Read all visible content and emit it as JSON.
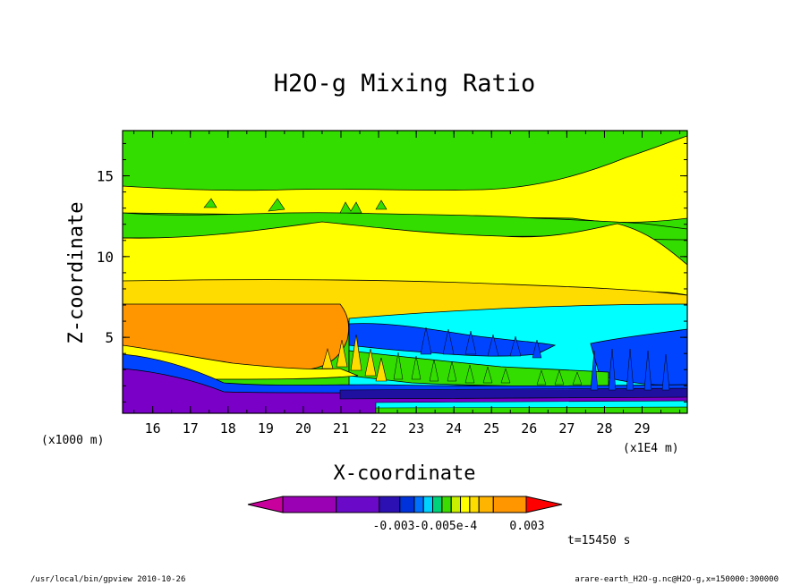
{
  "chart_data": {
    "type": "heatmap",
    "title": "H2O-g Mixing Ratio",
    "xlabel": "X-coordinate",
    "ylabel": "Z-coordinate",
    "x_units_left": "(x1000 m)",
    "x_units_right": "(x1E4 m)",
    "xlim": [
      15.2,
      30.2
    ],
    "ylim": [
      0.3,
      17.8
    ],
    "x_ticks": [
      "16",
      "17",
      "18",
      "19",
      "20",
      "21",
      "22",
      "23",
      "24",
      "25",
      "26",
      "27",
      "28",
      "29"
    ],
    "y_ticks": [
      "5",
      "10",
      "15"
    ],
    "colorbar": {
      "labels": [
        "-0.003",
        "-0.005e-4",
        "0.003"
      ],
      "colors": [
        "#c8009c",
        "#9a00b4",
        "#6a0ac8",
        "#2c10b4",
        "#0032dc",
        "#0070ff",
        "#00d2ff",
        "#00d27c",
        "#3cdc00",
        "#c8f000",
        "#ffff00",
        "#ffdc00",
        "#ffb400",
        "#ff9600",
        "#ff0000"
      ]
    },
    "levels": [
      {
        "name": "top-green",
        "color": "#33dd00"
      },
      {
        "name": "upper-yellow",
        "color": "#ffff00"
      },
      {
        "name": "mid-green",
        "color": "#33dd00"
      },
      {
        "name": "mid-yellow",
        "color": "#ffff00"
      },
      {
        "name": "gold",
        "color": "#ffdc00"
      },
      {
        "name": "orange",
        "color": "#ff9600"
      },
      {
        "name": "cyan",
        "color": "#00ffff"
      },
      {
        "name": "blue",
        "color": "#0044ff"
      },
      {
        "name": "purple",
        "color": "#7a00c8"
      }
    ]
  },
  "annotation": {
    "time": "t=15450 s"
  },
  "footer": {
    "left": "/usr/local/bin/gpview  2010-10-26",
    "right": "arare-earth_H2O-g.nc@H2O-g,x=150000:300000"
  }
}
